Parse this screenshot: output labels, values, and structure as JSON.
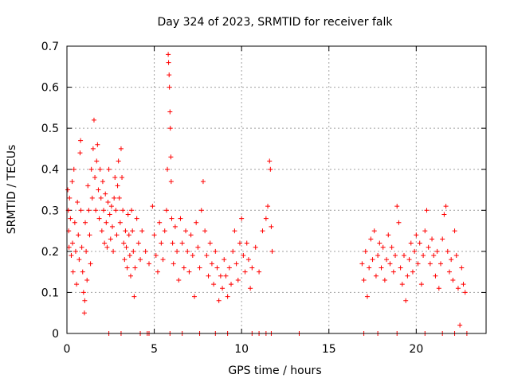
{
  "chart_data": {
    "type": "scatter",
    "title": "Day 324 of 2023, SRMTID for receiver falk",
    "xlabel": "GPS time / hours",
    "ylabel": "SRMTID / TECUs",
    "xlim": [
      0,
      24
    ],
    "ylim": [
      0,
      0.7
    ],
    "x_ticks": [
      0,
      5,
      10,
      15,
      20
    ],
    "y_ticks": [
      0,
      0.1,
      0.2,
      0.3,
      0.4,
      0.5,
      0.6,
      0.7
    ],
    "x_tick_labels": [
      "0",
      "5",
      "10",
      "15",
      "20"
    ],
    "y_tick_labels": [
      "0",
      "0.1",
      "0.2",
      "0.3",
      "0.4",
      "0.5",
      "0.6",
      "0.7"
    ],
    "grid": true,
    "marker": "+",
    "color": "#ff0000",
    "series": [
      {
        "name": "SRMTID",
        "points": [
          [
            0.05,
            0.35
          ],
          [
            0.08,
            0.3
          ],
          [
            0.1,
            0.25
          ],
          [
            0.12,
            0.21
          ],
          [
            0.15,
            0.33
          ],
          [
            0.2,
            0.28
          ],
          [
            0.25,
            0.19
          ],
          [
            0.3,
            0.37
          ],
          [
            0.32,
            0.22
          ],
          [
            0.35,
            0.15
          ],
          [
            0.4,
            0.4
          ],
          [
            0.45,
            0.27
          ],
          [
            0.5,
            0.2
          ],
          [
            0.55,
            0.12
          ],
          [
            0.6,
            0.32
          ],
          [
            0.65,
            0.24
          ],
          [
            0.7,
            0.18
          ],
          [
            0.75,
            0.44
          ],
          [
            0.78,
            0.47
          ],
          [
            0.8,
            0.3
          ],
          [
            0.85,
            0.21
          ],
          [
            0.9,
            0.15
          ],
          [
            0.95,
            0.1
          ],
          [
            1.0,
            0.05
          ],
          [
            1.02,
            0.08
          ],
          [
            1.05,
            0.27
          ],
          [
            1.1,
            0.2
          ],
          [
            1.15,
            0.13
          ],
          [
            1.2,
            0.36
          ],
          [
            1.25,
            0.3
          ],
          [
            1.3,
            0.24
          ],
          [
            1.35,
            0.17
          ],
          [
            1.4,
            0.4
          ],
          [
            1.45,
            0.33
          ],
          [
            1.5,
            0.45
          ],
          [
            1.55,
            0.52
          ],
          [
            1.6,
            0.38
          ],
          [
            1.65,
            0.3
          ],
          [
            1.7,
            0.42
          ],
          [
            1.75,
            0.46
          ],
          [
            1.8,
            0.35
          ],
          [
            1.85,
            0.28
          ],
          [
            1.9,
            0.4
          ],
          [
            1.95,
            0.33
          ],
          [
            2.0,
            0.25
          ],
          [
            2.05,
            0.37
          ],
          [
            2.1,
            0.3
          ],
          [
            2.15,
            0.22
          ],
          [
            2.2,
            0.34
          ],
          [
            2.25,
            0.27
          ],
          [
            2.3,
            0.21
          ],
          [
            2.35,
            0.32
          ],
          [
            2.4,
            0.4
          ],
          [
            2.45,
            0.29
          ],
          [
            2.5,
            0.23
          ],
          [
            2.55,
            0.31
          ],
          [
            2.6,
            0.26
          ],
          [
            2.65,
            0.2
          ],
          [
            2.7,
            0.33
          ],
          [
            2.75,
            0.38
          ],
          [
            2.8,
            0.3
          ],
          [
            2.85,
            0.24
          ],
          [
            2.9,
            0.36
          ],
          [
            2.95,
            0.42
          ],
          [
            3.0,
            0.33
          ],
          [
            3.05,
            0.27
          ],
          [
            3.1,
            0.45
          ],
          [
            3.15,
            0.38
          ],
          [
            3.2,
            0.3
          ],
          [
            3.25,
            0.22
          ],
          [
            3.3,
            0.18
          ],
          [
            3.35,
            0.25
          ],
          [
            3.4,
            0.21
          ],
          [
            3.45,
            0.16
          ],
          [
            3.5,
            0.29
          ],
          [
            3.55,
            0.24
          ],
          [
            3.6,
            0.19
          ],
          [
            3.65,
            0.14
          ],
          [
            3.7,
            0.3
          ],
          [
            3.75,
            0.25
          ],
          [
            3.8,
            0.2
          ],
          [
            3.85,
            0.09
          ],
          [
            3.9,
            0.16
          ],
          [
            4.0,
            0.28
          ],
          [
            4.1,
            0.22
          ],
          [
            4.2,
            0.18
          ],
          [
            4.3,
            0.25
          ],
          [
            4.5,
            0.2
          ],
          [
            4.7,
            0.17
          ],
          [
            4.9,
            0.31
          ],
          [
            5.0,
            0.24
          ],
          [
            5.1,
            0.19
          ],
          [
            5.2,
            0.15
          ],
          [
            5.3,
            0.27
          ],
          [
            5.4,
            0.22
          ],
          [
            5.5,
            0.18
          ],
          [
            5.6,
            0.25
          ],
          [
            5.7,
            0.3
          ],
          [
            5.75,
            0.4
          ],
          [
            5.8,
            0.68
          ],
          [
            5.82,
            0.66
          ],
          [
            5.85,
            0.63
          ],
          [
            5.87,
            0.6
          ],
          [
            5.9,
            0.54
          ],
          [
            5.92,
            0.5
          ],
          [
            5.95,
            0.43
          ],
          [
            5.97,
            0.37
          ],
          [
            6.0,
            0.28
          ],
          [
            6.05,
            0.22
          ],
          [
            6.1,
            0.17
          ],
          [
            6.2,
            0.26
          ],
          [
            6.3,
            0.2
          ],
          [
            6.4,
            0.13
          ],
          [
            6.5,
            0.28
          ],
          [
            6.6,
            0.22
          ],
          [
            6.7,
            0.16
          ],
          [
            6.8,
            0.25
          ],
          [
            6.9,
            0.2
          ],
          [
            7.0,
            0.15
          ],
          [
            7.1,
            0.24
          ],
          [
            7.2,
            0.19
          ],
          [
            7.3,
            0.09
          ],
          [
            7.4,
            0.27
          ],
          [
            7.5,
            0.21
          ],
          [
            7.6,
            0.16
          ],
          [
            7.7,
            0.3
          ],
          [
            7.8,
            0.37
          ],
          [
            7.9,
            0.25
          ],
          [
            8.0,
            0.19
          ],
          [
            8.1,
            0.14
          ],
          [
            8.2,
            0.22
          ],
          [
            8.3,
            0.17
          ],
          [
            8.4,
            0.12
          ],
          [
            8.5,
            0.2
          ],
          [
            8.6,
            0.16
          ],
          [
            8.7,
            0.08
          ],
          [
            8.8,
            0.14
          ],
          [
            8.9,
            0.11
          ],
          [
            9.0,
            0.18
          ],
          [
            9.1,
            0.14
          ],
          [
            9.2,
            0.09
          ],
          [
            9.3,
            0.16
          ],
          [
            9.4,
            0.12
          ],
          [
            9.5,
            0.2
          ],
          [
            9.6,
            0.25
          ],
          [
            9.7,
            0.17
          ],
          [
            9.8,
            0.13
          ],
          [
            9.9,
            0.22
          ],
          [
            10.0,
            0.28
          ],
          [
            10.1,
            0.19
          ],
          [
            10.2,
            0.15
          ],
          [
            10.3,
            0.22
          ],
          [
            10.4,
            0.18
          ],
          [
            10.5,
            0.11
          ],
          [
            10.6,
            0.16
          ],
          [
            10.8,
            0.21
          ],
          [
            11.0,
            0.15
          ],
          [
            11.2,
            0.25
          ],
          [
            11.4,
            0.28
          ],
          [
            11.5,
            0.31
          ],
          [
            11.6,
            0.42
          ],
          [
            11.65,
            0.4
          ],
          [
            11.7,
            0.26
          ],
          [
            11.75,
            0.2
          ],
          [
            16.9,
            0.17
          ],
          [
            17.0,
            0.13
          ],
          [
            17.1,
            0.2
          ],
          [
            17.2,
            0.09
          ],
          [
            17.3,
            0.16
          ],
          [
            17.4,
            0.23
          ],
          [
            17.5,
            0.18
          ],
          [
            17.6,
            0.25
          ],
          [
            17.7,
            0.14
          ],
          [
            17.8,
            0.19
          ],
          [
            17.9,
            0.22
          ],
          [
            18.0,
            0.16
          ],
          [
            18.1,
            0.21
          ],
          [
            18.2,
            0.13
          ],
          [
            18.3,
            0.18
          ],
          [
            18.4,
            0.24
          ],
          [
            18.5,
            0.17
          ],
          [
            18.6,
            0.21
          ],
          [
            18.7,
            0.15
          ],
          [
            18.8,
            0.19
          ],
          [
            18.9,
            0.31
          ],
          [
            19.0,
            0.27
          ],
          [
            19.1,
            0.16
          ],
          [
            19.2,
            0.12
          ],
          [
            19.3,
            0.19
          ],
          [
            19.4,
            0.08
          ],
          [
            19.5,
            0.14
          ],
          [
            19.6,
            0.18
          ],
          [
            19.7,
            0.22
          ],
          [
            19.8,
            0.15
          ],
          [
            19.9,
            0.2
          ],
          [
            20.0,
            0.24
          ],
          [
            20.1,
            0.17
          ],
          [
            20.2,
            0.22
          ],
          [
            20.3,
            0.12
          ],
          [
            20.4,
            0.19
          ],
          [
            20.5,
            0.25
          ],
          [
            20.6,
            0.3
          ],
          [
            20.7,
            0.21
          ],
          [
            20.8,
            0.17
          ],
          [
            20.9,
            0.23
          ],
          [
            21.0,
            0.19
          ],
          [
            21.1,
            0.14
          ],
          [
            21.2,
            0.2
          ],
          [
            21.3,
            0.11
          ],
          [
            21.4,
            0.17
          ],
          [
            21.5,
            0.23
          ],
          [
            21.6,
            0.29
          ],
          [
            21.7,
            0.31
          ],
          [
            21.8,
            0.2
          ],
          [
            21.9,
            0.15
          ],
          [
            22.0,
            0.18
          ],
          [
            22.1,
            0.13
          ],
          [
            22.2,
            0.25
          ],
          [
            22.3,
            0.19
          ],
          [
            22.4,
            0.11
          ],
          [
            22.5,
            0.02
          ],
          [
            22.6,
            0.16
          ],
          [
            22.7,
            0.12
          ],
          [
            22.8,
            0.1
          ]
        ]
      }
    ],
    "zero_points_x": [
      2.4,
      3.1,
      4.2,
      4.6,
      4.7,
      5.9,
      6.6,
      7.6,
      8.5,
      9.2,
      10.6,
      11.0,
      11.4,
      11.7,
      13.3,
      17.0,
      17.8,
      18.9,
      20.5,
      21.5,
      22.2,
      22.9
    ]
  }
}
